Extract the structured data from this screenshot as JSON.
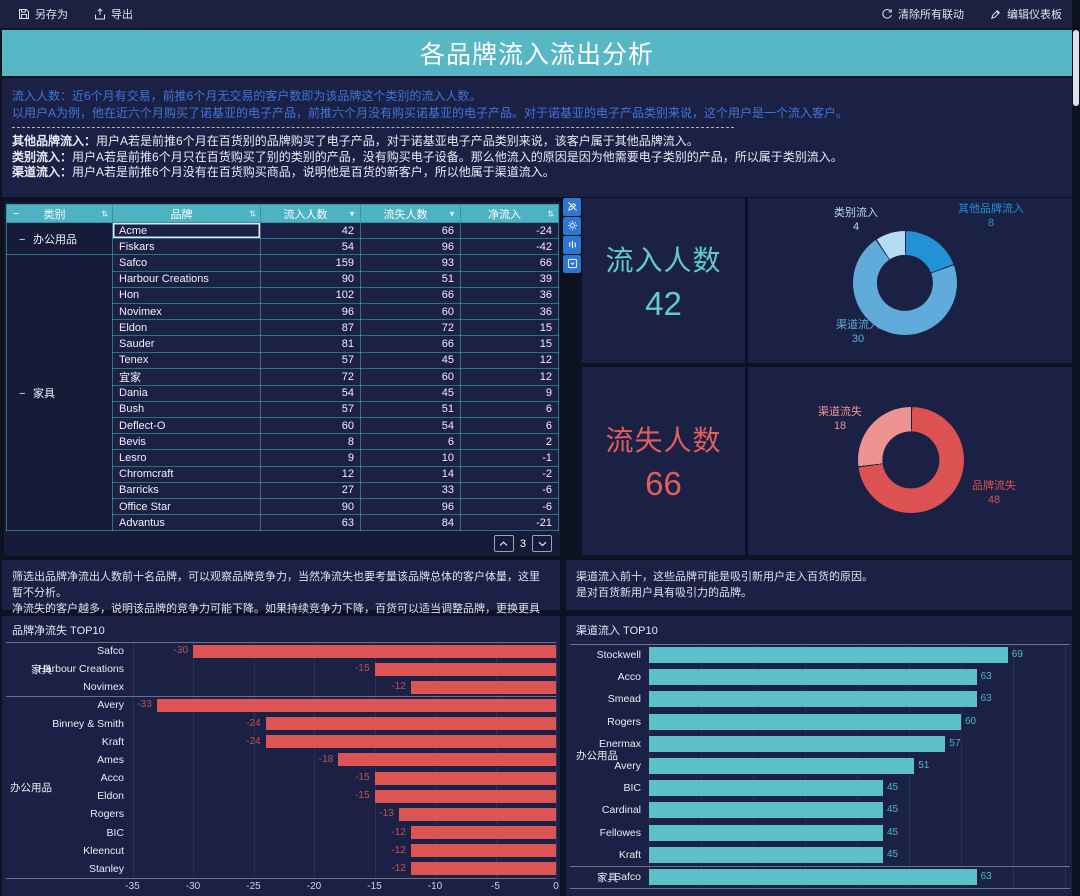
{
  "title": "各品牌流入流出分析",
  "toolbar": {
    "left": [
      {
        "icon": "save-icon",
        "label": "另存为"
      },
      {
        "icon": "export-icon",
        "label": "导出"
      }
    ],
    "right": [
      {
        "icon": "clear-linkage-icon",
        "label": "清除所有联动"
      },
      {
        "icon": "edit-icon",
        "label": "编辑仪表板"
      }
    ]
  },
  "description": {
    "blue_lines": [
      "流入人数：近6个月有交易，前推6个月无交易的客户数即为该品牌这个类别的流入人数。",
      "以用户A为例，他在近六个月购买了诺基亚的电子产品，前推六个月没有购买诺基亚的电子产品。对于诺基亚的电子产品类别来说，这个用户是一个流入客户。"
    ],
    "white_lines": [
      {
        "bold": "其他品牌流入：",
        "text": "用户A若是前推6个月在百货别的品牌购买了电子产品，对于诺基亚电子产品类别来说，该客户属于其他品牌流入。"
      },
      {
        "bold": "类别流入：",
        "text": "用户A若是前推6个月只在百货购买了别的类别的产品，没有购买电子设备。那么他流入的原因是因为他需要电子类别的产品，所以属于类别流入。"
      },
      {
        "bold": "渠道流入：",
        "text": "用户A若是前推6个月没有在百货购买商品，说明他是百货的新客户，所以他属于渠道流入。"
      }
    ]
  },
  "table": {
    "headers": [
      {
        "label": "类别",
        "icon": "sort"
      },
      {
        "label": "品牌",
        "icon": "sort"
      },
      {
        "label": "流入人数",
        "icon": "filter"
      },
      {
        "label": "流失人数",
        "icon": "filter"
      },
      {
        "label": "净流入",
        "icon": "sort"
      }
    ],
    "groups": [
      {
        "category": "办公用品",
        "rows": [
          [
            "Acme",
            42,
            66,
            -24
          ],
          [
            "Fiskars",
            54,
            96,
            -42
          ]
        ]
      },
      {
        "category": "家具",
        "rows": [
          [
            "Safco",
            159,
            93,
            66
          ],
          [
            "Harbour Creations",
            90,
            51,
            39
          ],
          [
            "Hon",
            102,
            66,
            36
          ],
          [
            "Novimex",
            96,
            60,
            36
          ],
          [
            "Eldon",
            87,
            72,
            15
          ],
          [
            "Sauder",
            81,
            66,
            15
          ],
          [
            "Tenex",
            57,
            45,
            12
          ],
          [
            "宜家",
            72,
            60,
            12
          ],
          [
            "Dania",
            54,
            45,
            9
          ],
          [
            "Bush",
            57,
            51,
            6
          ],
          [
            "Deflect-O",
            60,
            54,
            6
          ],
          [
            "Bevis",
            8,
            6,
            2
          ],
          [
            "Lesro",
            9,
            10,
            -1
          ],
          [
            "Chromcraft",
            12,
            14,
            -2
          ],
          [
            "Barricks",
            27,
            33,
            -6
          ],
          [
            "Office Star",
            90,
            96,
            -6
          ],
          [
            "Advantus",
            63,
            84,
            -21
          ]
        ]
      }
    ],
    "page": "3",
    "selected_cell": "Acme"
  },
  "mini_toolbar": {
    "icons": [
      "pen-slash",
      "gear",
      "data-bars",
      "collapse-box"
    ]
  },
  "kpi": {
    "inflow_label": "流入人数",
    "inflow_value": "42",
    "outflow_label": "流失人数",
    "outflow_value": "66",
    "inflow_color": "#63c9c9",
    "outflow_color": "#e05e5e"
  },
  "notes": {
    "left": [
      "筛选出品牌净流出人数前十名品牌，可以观察品牌竞争力，当然净流失也要考量该品牌总体的客户体量，这里暂不分析。",
      "净流失的客户越多，说明该品牌的竞争力可能下降。如果持续竞争力下降，百货可以适当调整品牌，更换更具竞争力的品牌。"
    ],
    "right": [
      "渠道流入前十，这些品牌可能是吸引新用户走入百货的原因。",
      "是对百货新用户具有吸引力的品牌。"
    ]
  },
  "chart_data": [
    {
      "type": "pie",
      "name": "inflow-composition-donut",
      "total": 42,
      "legend_position": "callout-labels",
      "series": [
        {
          "name": "其他品牌流入",
          "value": 8,
          "color": "#2391d6"
        },
        {
          "name": "渠道流入",
          "value": 30,
          "color": "#5fabd9"
        },
        {
          "name": "类别流入",
          "value": 4,
          "color": "#b5daf3"
        }
      ]
    },
    {
      "type": "pie",
      "name": "outflow-composition-donut",
      "total": 66,
      "legend_position": "callout-labels",
      "series": [
        {
          "name": "品牌流失",
          "value": 48,
          "color": "#dc5151"
        },
        {
          "name": "渠道流失",
          "value": 18,
          "color": "#ee9393"
        }
      ]
    },
    {
      "type": "bar",
      "name": "net-churn-top10",
      "title": "品牌净流失 TOP10",
      "orientation": "horizontal",
      "bar_color": "#dc5454",
      "value_label_color": "#c35252",
      "xlim": [
        -35,
        0
      ],
      "xticks": [
        -35,
        -30,
        -25,
        -20,
        -15,
        -10,
        -5,
        0
      ],
      "show_tick_labels": true,
      "groups": [
        {
          "label": "家具",
          "items": [
            {
              "name": "Safco",
              "value": -30
            },
            {
              "name": "Harbour Creations",
              "value": -15
            },
            {
              "name": "Novimex",
              "value": -12
            }
          ]
        },
        {
          "label": "办公用品",
          "items": [
            {
              "name": "Avery",
              "value": -33
            },
            {
              "name": "Binney & Smith",
              "value": -24
            },
            {
              "name": "Kraft",
              "value": -24
            },
            {
              "name": "Ames",
              "value": -18
            },
            {
              "name": "Acco",
              "value": -15
            },
            {
              "name": "Eldon",
              "value": -15
            },
            {
              "name": "Rogers",
              "value": -13
            },
            {
              "name": "BIC",
              "value": -12
            },
            {
              "name": "Kleencut",
              "value": -12
            },
            {
              "name": "Stanley",
              "value": -12
            }
          ]
        }
      ]
    },
    {
      "type": "bar",
      "name": "channel-inflow-top10",
      "title": "渠道流入 TOP10",
      "orientation": "horizontal",
      "bar_color": "#5bc0c9",
      "value_label_color": "#49b8c8",
      "xlim": [
        0,
        80
      ],
      "xticks": [
        0,
        10,
        20,
        30,
        40,
        50,
        60,
        70,
        80
      ],
      "show_tick_labels": false,
      "groups": [
        {
          "label": "办公用品",
          "items": [
            {
              "name": "Stockwell",
              "value": 69
            },
            {
              "name": "Acco",
              "value": 63
            },
            {
              "name": "Smead",
              "value": 63
            },
            {
              "name": "Rogers",
              "value": 60
            },
            {
              "name": "Enermax",
              "value": 57
            },
            {
              "name": "Avery",
              "value": 51
            },
            {
              "name": "BIC",
              "value": 45
            },
            {
              "name": "Cardinal",
              "value": 45
            },
            {
              "name": "Fellowes",
              "value": 45
            },
            {
              "name": "Kraft",
              "value": 45
            }
          ]
        },
        {
          "label": "家具",
          "items": [
            {
              "name": "Safco",
              "value": 63
            }
          ]
        }
      ]
    }
  ]
}
